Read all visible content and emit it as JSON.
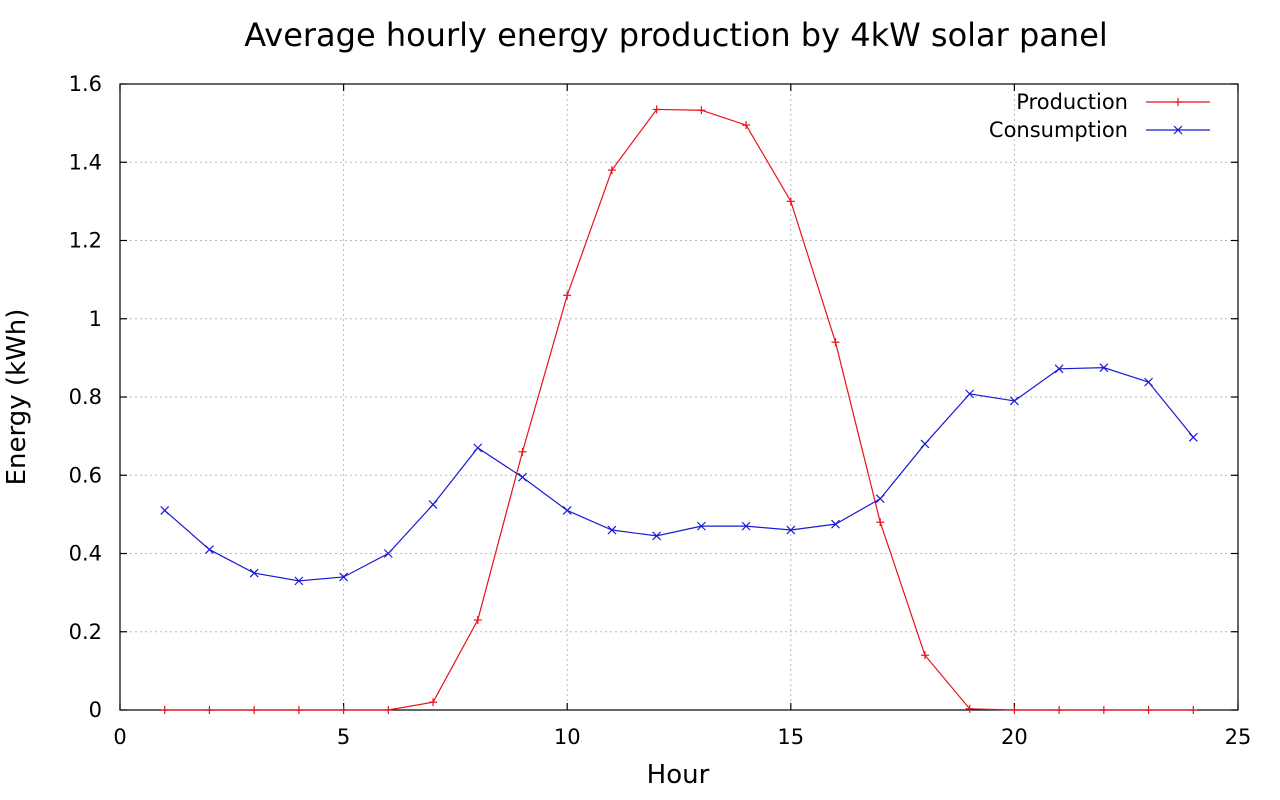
{
  "chart_data": {
    "type": "line",
    "title": "Average hourly energy production by 4kW solar panel",
    "xlabel": "Hour",
    "ylabel": "Energy (kWh)",
    "xlim": [
      0,
      25
    ],
    "ylim": [
      0,
      1.6
    ],
    "xticks": [
      0,
      5,
      10,
      15,
      20,
      25
    ],
    "yticks": [
      0,
      0.2,
      0.4,
      0.6,
      0.8,
      1,
      1.2,
      1.4,
      1.6
    ],
    "xtick_labels": [
      "0",
      "5",
      "10",
      "15",
      "20",
      "25"
    ],
    "ytick_labels": [
      "0",
      "0.2",
      "0.4",
      "0.6",
      "0.8",
      "1",
      "1.2",
      "1.4",
      "1.6"
    ],
    "grid": true,
    "legend_position": "top-right",
    "x": [
      1,
      2,
      3,
      4,
      5,
      6,
      7,
      8,
      9,
      10,
      11,
      12,
      13,
      14,
      15,
      16,
      17,
      18,
      19,
      20,
      21,
      22,
      23,
      24
    ],
    "series": [
      {
        "name": "Production",
        "color": "#e8111a",
        "marker": "plus",
        "values": [
          0,
          0,
          0,
          0,
          0,
          0,
          0.02,
          0.23,
          0.66,
          1.06,
          1.38,
          1.535,
          1.533,
          1.495,
          1.3,
          0.94,
          0.48,
          0.14,
          0.003,
          0,
          0,
          0,
          0,
          0
        ]
      },
      {
        "name": "Consumption",
        "color": "#1a1ad6",
        "marker": "cross",
        "values": [
          0.51,
          0.41,
          0.35,
          0.33,
          0.34,
          0.4,
          0.525,
          0.67,
          0.595,
          0.51,
          0.46,
          0.445,
          0.47,
          0.47,
          0.46,
          0.475,
          0.54,
          0.68,
          0.808,
          0.79,
          0.872,
          0.875,
          0.838,
          0.697
        ]
      }
    ]
  }
}
